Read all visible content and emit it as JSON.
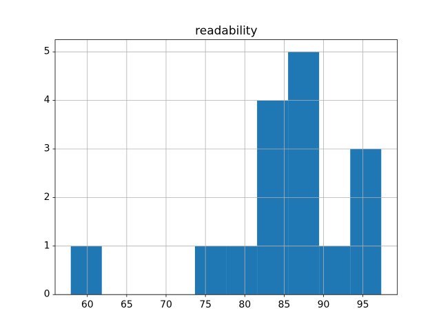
{
  "figure": {
    "background": "#ffffff"
  },
  "chart_data": {
    "type": "bar",
    "subtype": "histogram",
    "title": "readability",
    "xlabel": "",
    "ylabel": "",
    "bin_edges": [
      57.9,
      61.84,
      65.79,
      69.73,
      73.67,
      77.62,
      81.56,
      85.5,
      89.44,
      93.39,
      97.33
    ],
    "counts": [
      1,
      0,
      0,
      0,
      1,
      1,
      4,
      5,
      1,
      3
    ],
    "xticks": [
      60,
      65,
      70,
      75,
      80,
      85,
      90,
      95
    ],
    "yticks": [
      0,
      1,
      2,
      3,
      4,
      5
    ],
    "xlim": [
      55.91,
      99.38
    ],
    "ylim": [
      0,
      5.25
    ],
    "grid": true,
    "grid_above_bars": true,
    "legend": "none",
    "colors": {
      "bar": "#1f77b4",
      "grid": "#b0b0b0",
      "spine": "#000000",
      "text": "#000000",
      "background": "#ffffff"
    }
  }
}
